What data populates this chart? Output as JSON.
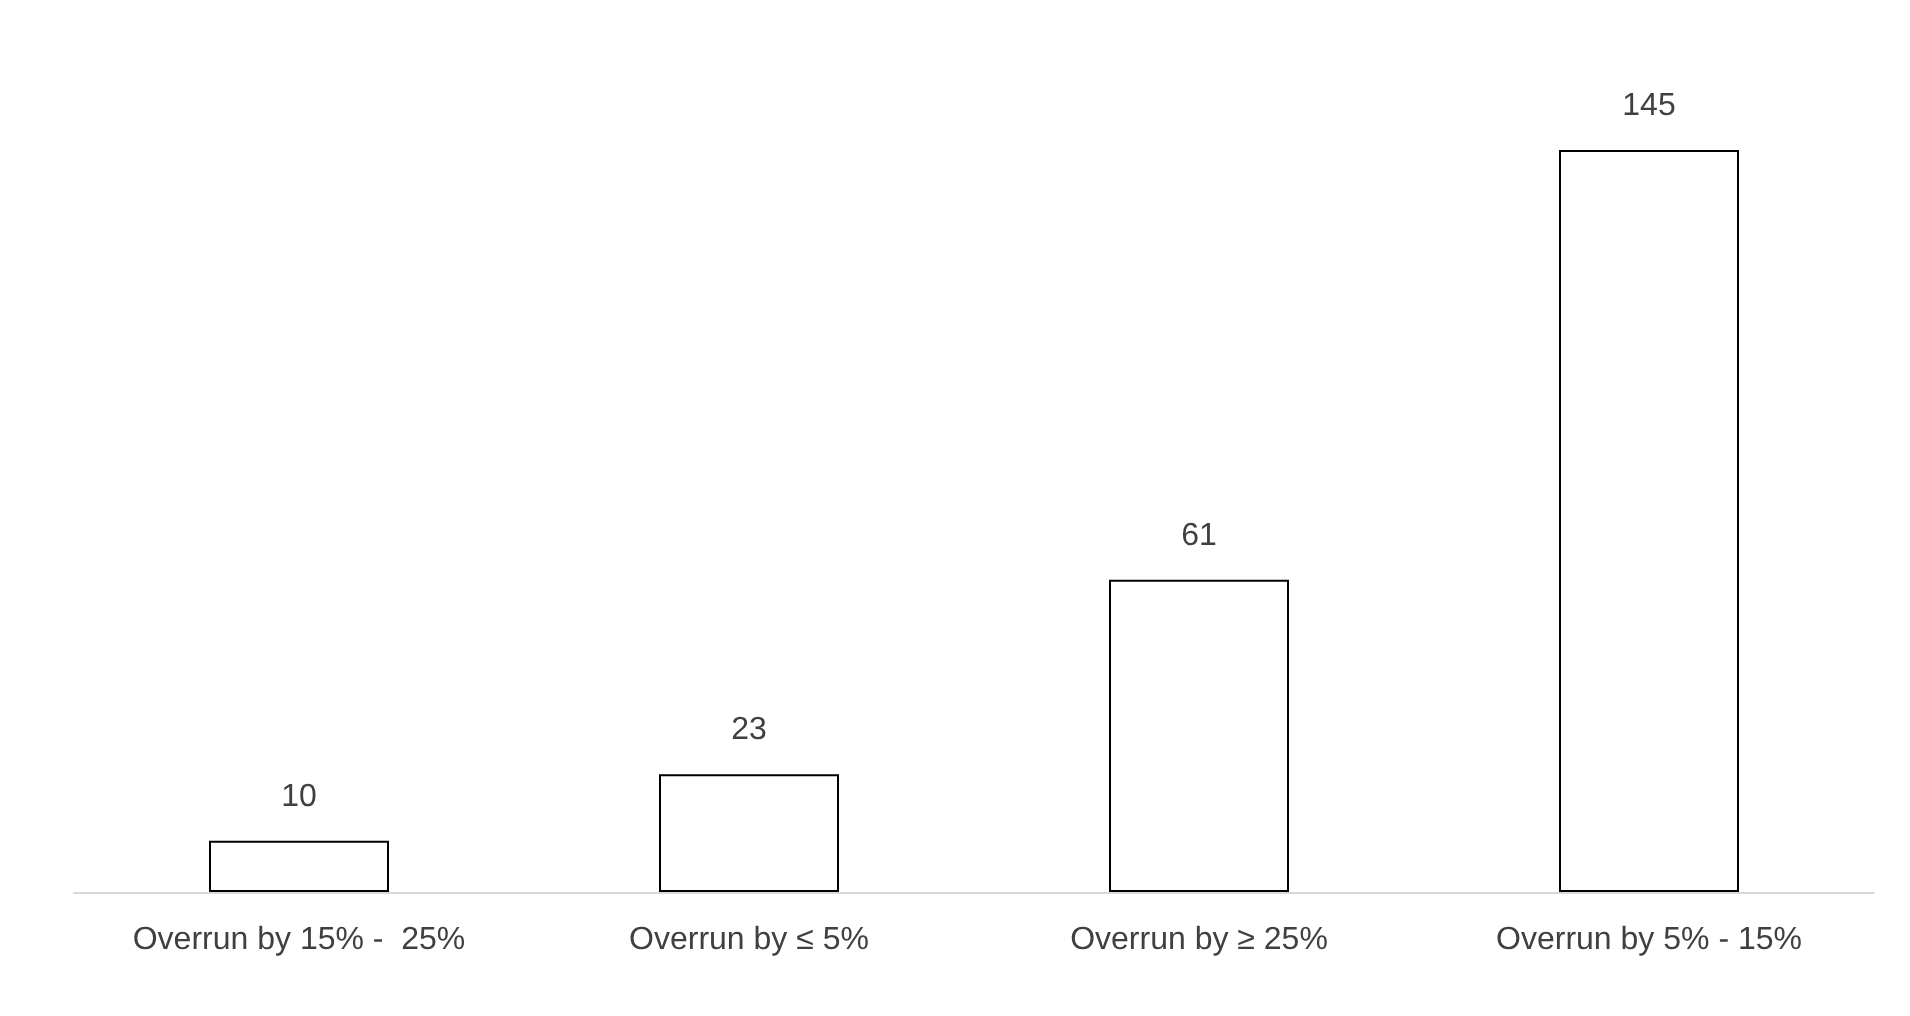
{
  "chart_data": {
    "type": "bar",
    "categories": [
      "Overrun by 15% -  25%",
      "Overrun by ≤ 5%",
      "Overrun by ≥ 25%",
      "Overrun by 5% - 15%"
    ],
    "values": [
      10,
      23,
      61,
      145
    ],
    "color": "#ffffff",
    "data_labels": true
  }
}
